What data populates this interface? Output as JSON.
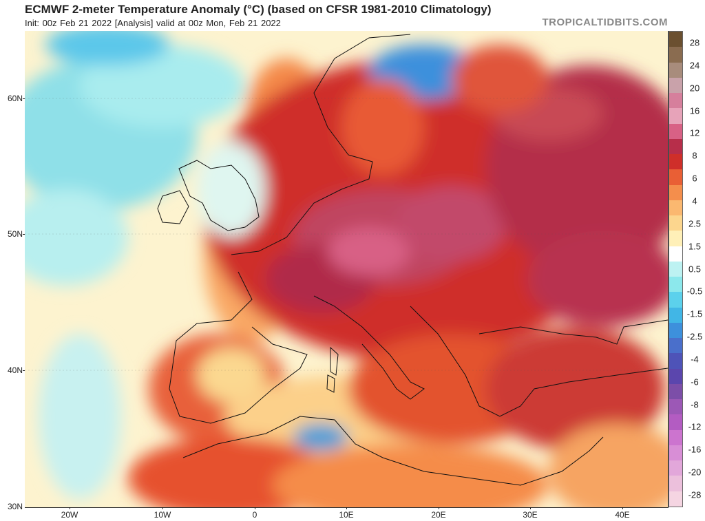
{
  "title": "ECMWF 2-meter Temperature Anomaly (°C) (based on CFSR 1981-2010 Climatology)",
  "subtitle": "Init: 00z Feb 21 2022   [Analysis]   valid at 00z Mon, Feb 21 2022",
  "brand": "TROPICALTIDBITS.COM",
  "lat_labels": [
    "60N",
    "50N",
    "40N",
    "30N"
  ],
  "lon_labels": [
    "20W",
    "10W",
    "0",
    "10E",
    "20E",
    "30E",
    "40E"
  ],
  "colorbar": {
    "labels": [
      "28",
      "24",
      "20",
      "16",
      "12",
      "8",
      "6",
      "4",
      "2.5",
      "1.5",
      "0.5",
      "-0.5",
      "-1.5",
      "-2.5",
      "-4",
      "-6",
      "-8",
      "-12",
      "-16",
      "-20",
      "-28"
    ],
    "colors": [
      "#6b5030",
      "#8a6c50",
      "#a88c7c",
      "#c9a2aa",
      "#d67f9c",
      "#e7a3b9",
      "#d86185",
      "#b72e4a",
      "#cf2f2a",
      "#e95f35",
      "#f48e4c",
      "#fbb870",
      "#fcd68e",
      "#fff0b8",
      "#ffffff",
      "#bdf2f2",
      "#8ce8ec",
      "#5cd1ec",
      "#41b6e6",
      "#3d90dc",
      "#4a6fcb",
      "#4e53b8",
      "#5b46ad",
      "#7c4ea8",
      "#9c58b6",
      "#b35cc2",
      "#cc74cf",
      "#d88ed6",
      "#e2a7da",
      "#ecc0dc",
      "#f5d5e2"
    ]
  }
}
